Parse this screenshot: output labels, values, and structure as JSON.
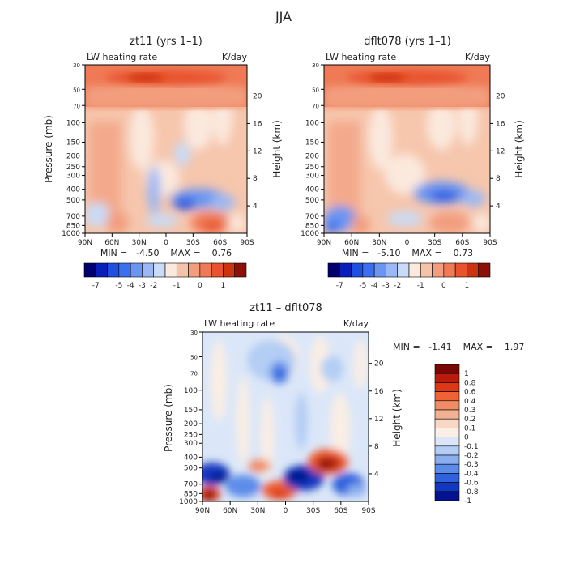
{
  "page_title": "JJA",
  "stats": {
    "p1": "MIN =   -4.50    MAX =    0.76",
    "p2": "MIN =   -5.10    MAX =    0.73",
    "p3": "MIN =   -1.41    MAX =    1.97"
  },
  "chart_data": [
    {
      "type": "heatmap",
      "title": "zt11 (yrs 1–1)",
      "subtitle_left": "LW heating rate",
      "subtitle_right": "K/day",
      "ylabel": "Pressure (mb)",
      "ylabel_right": "Height (km)",
      "x_ticks": [
        "90N",
        "60N",
        "30N",
        "0",
        "30S",
        "60S",
        "90S"
      ],
      "y_ticks": [
        "30",
        "50",
        "70",
        "100",
        "150",
        "200",
        "250",
        "300",
        "400",
        "500",
        "700",
        "850",
        "1000"
      ],
      "y_right_ticks": [
        "20",
        "16",
        "12",
        "8",
        "4"
      ],
      "min": -4.5,
      "max": 0.76,
      "colorbar_labels": [
        "-7",
        "-5",
        "-4",
        "-3",
        "-2",
        "-1",
        "0",
        "1"
      ]
    },
    {
      "type": "heatmap",
      "title": "dflt078 (yrs 1–1)",
      "subtitle_left": "LW heating rate",
      "subtitle_right": "K/day",
      "ylabel": "Pressure (mb)",
      "ylabel_right": "Height (km)",
      "x_ticks": [
        "90N",
        "60N",
        "30N",
        "0",
        "30S",
        "60S",
        "90S"
      ],
      "y_ticks": [
        "30",
        "50",
        "70",
        "100",
        "150",
        "200",
        "250",
        "300",
        "400",
        "500",
        "700",
        "850",
        "1000"
      ],
      "y_right_ticks": [
        "20",
        "16",
        "12",
        "8",
        "4"
      ],
      "min": -5.1,
      "max": 0.73,
      "colorbar_labels": [
        "-7",
        "-5",
        "-4",
        "-3",
        "-2",
        "-1",
        "0",
        "1"
      ]
    },
    {
      "type": "heatmap",
      "title": "zt11 – dflt078",
      "subtitle_left": "LW heating rate",
      "subtitle_right": "K/day",
      "ylabel": "Pressure (mb)",
      "ylabel_right": "Height (km)",
      "x_ticks": [
        "90N",
        "60N",
        "30N",
        "0",
        "30S",
        "60S",
        "90S"
      ],
      "y_ticks": [
        "30",
        "50",
        "70",
        "100",
        "150",
        "200",
        "250",
        "300",
        "400",
        "500",
        "700",
        "850",
        "1000"
      ],
      "y_right_ticks": [
        "20",
        "16",
        "12",
        "8",
        "4"
      ],
      "min": -1.41,
      "max": 1.97,
      "colorbar_labels": [
        "1",
        "0.8",
        "0.6",
        "0.4",
        "0.3",
        "0.2",
        "0.1",
        "0",
        "-0.1",
        "-0.2",
        "-0.3",
        "-0.4",
        "-0.6",
        "-0.8",
        "-1"
      ]
    }
  ],
  "colors": {
    "full_bar": [
      "#00006e",
      "#0a1fb8",
      "#1f4fe0",
      "#3a70f0",
      "#6a96f2",
      "#9ab8f5",
      "#c8dcf7",
      "#fbe9de",
      "#f5c4a8",
      "#f29e7e",
      "#ef7a55",
      "#e8532e",
      "#cc3311",
      "#8c0f08"
    ],
    "diff_bar": [
      "#7a0606",
      "#b91c0c",
      "#dd3815",
      "#ee6234",
      "#f08c65",
      "#f3b193",
      "#f8d8c4",
      "#fbeee4",
      "#dbe7f8",
      "#b4cdf4",
      "#88aef0",
      "#5b8ce9",
      "#2f62dd",
      "#1237c0",
      "#05128e"
    ]
  }
}
